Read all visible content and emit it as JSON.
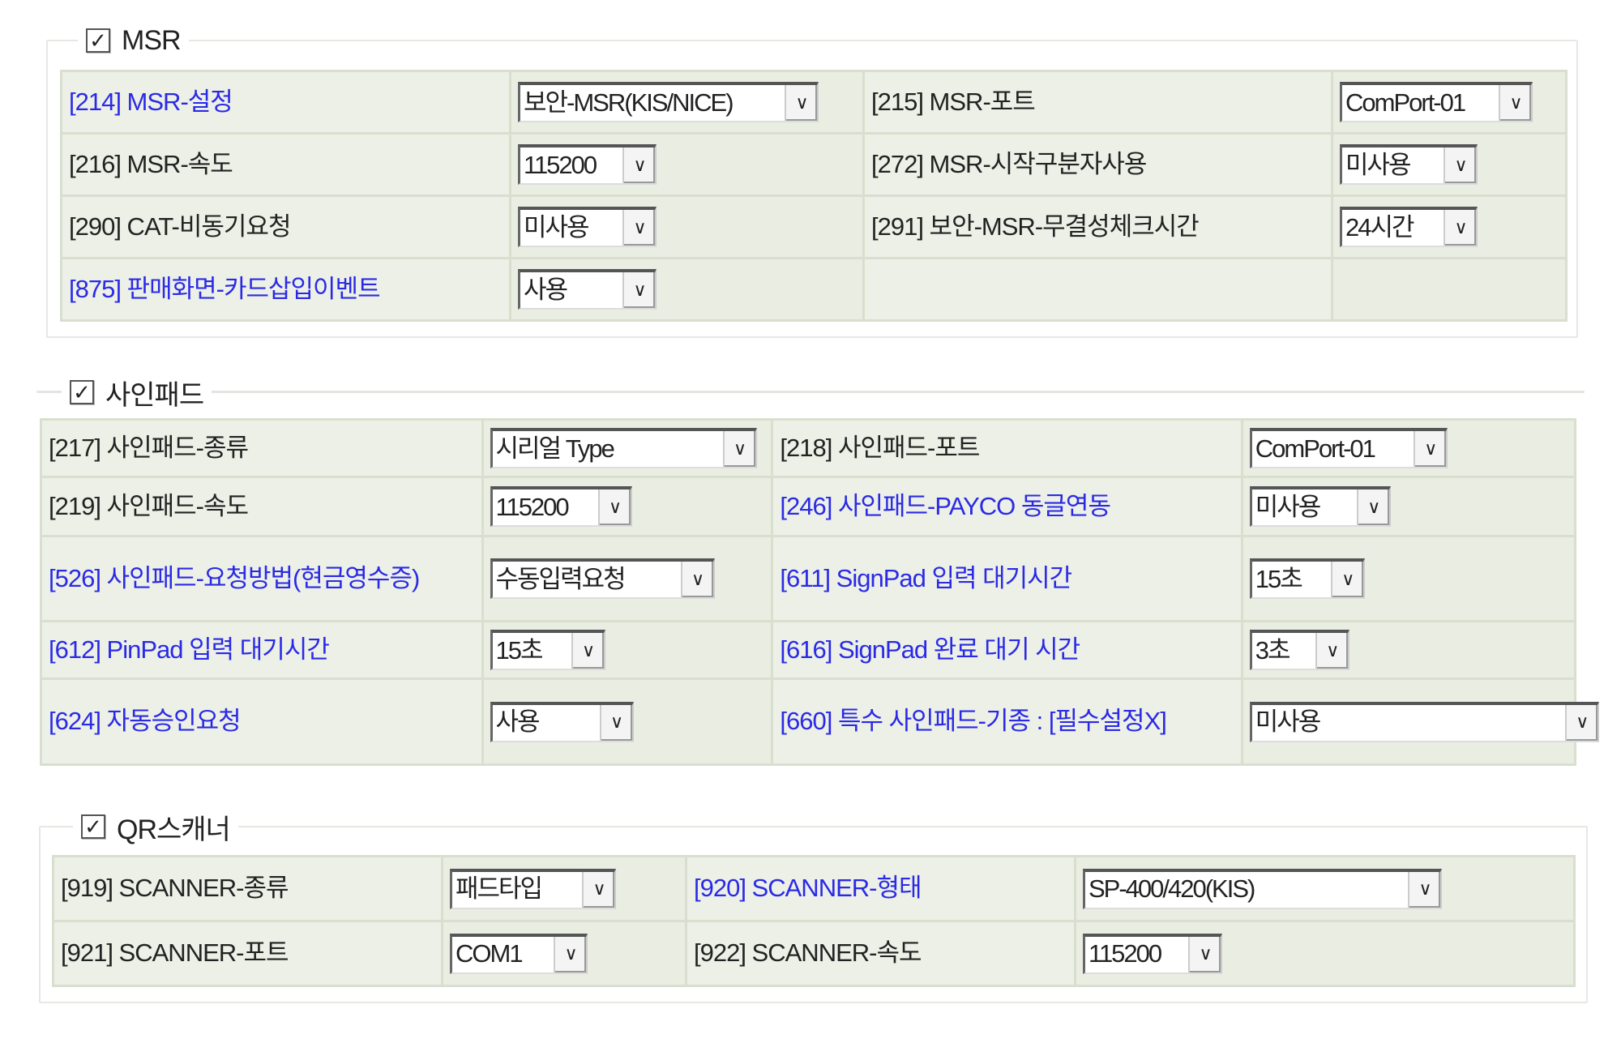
{
  "sections": [
    {
      "title": "MSR",
      "checked": true,
      "rows": [
        [
          {
            "label": "[214] MSR-설정",
            "blue": true,
            "value": "보안-MSR(KIS/NICE)"
          },
          {
            "label": "[215] MSR-포트",
            "blue": false,
            "value": "ComPort-01"
          }
        ],
        [
          {
            "label": "[216] MSR-속도",
            "blue": false,
            "value": "115200"
          },
          {
            "label": "[272] MSR-시작구분자사용",
            "blue": false,
            "value": "미사용"
          }
        ],
        [
          {
            "label": "[290] CAT-비동기요청",
            "blue": false,
            "value": "미사용"
          },
          {
            "label": "[291] 보안-MSR-무결성체크시간",
            "blue": false,
            "value": "24시간"
          }
        ],
        [
          {
            "label": "[875] 판매화면-카드삽입이벤트",
            "blue": true,
            "value": "사용"
          },
          null
        ]
      ]
    },
    {
      "title": "사인패드",
      "checked": true,
      "rows": [
        [
          {
            "label": "[217] 사인패드-종류",
            "blue": false,
            "value": "시리얼 Type"
          },
          {
            "label": "[218] 사인패드-포트",
            "blue": false,
            "value": "ComPort-01"
          }
        ],
        [
          {
            "label": "[219] 사인패드-속도",
            "blue": false,
            "value": "115200"
          },
          {
            "label": "[246] 사인패드-PAYCO 동글연동",
            "blue": true,
            "value": "미사용"
          }
        ],
        [
          {
            "label": "[526] 사인패드-요청방법(현금영수증)",
            "blue": true,
            "value": "수동입력요청"
          },
          {
            "label": "[611] SignPad 입력 대기시간",
            "blue": true,
            "value": "15초"
          }
        ],
        [
          {
            "label": "[612] PinPad 입력 대기시간",
            "blue": true,
            "value": "15초"
          },
          {
            "label": "[616] SignPad 완료 대기 시간",
            "blue": true,
            "value": "3초"
          }
        ],
        [
          {
            "label": "[624] 자동승인요청",
            "blue": true,
            "value": "사용"
          },
          {
            "label": "[660] 특수 사인패드-기종 : [필수설정X]",
            "blue": true,
            "value": "미사용"
          }
        ]
      ]
    },
    {
      "title": "QR스캐너",
      "checked": true,
      "rows": [
        [
          {
            "label": "[919] SCANNER-종류",
            "blue": false,
            "value": "패드타입"
          },
          {
            "label": "[920] SCANNER-형태",
            "blue": true,
            "value": "SP-400/420(KIS)"
          }
        ],
        [
          {
            "label": "[921] SCANNER-포트",
            "blue": false,
            "value": "COM1"
          },
          {
            "label": "[922] SCANNER-속도",
            "blue": false,
            "value": "115200"
          }
        ]
      ]
    }
  ],
  "icons": {
    "checkbox": "checkbox-checked-icon",
    "dropdown": "chevron-down-icon"
  },
  "colors": {
    "link_label": "#2a2ae6",
    "cell_bg": "#e9ede2"
  }
}
